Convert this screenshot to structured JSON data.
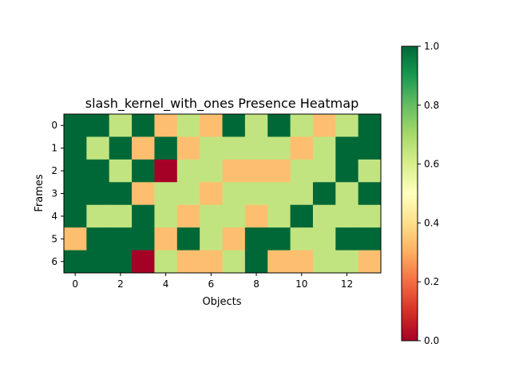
{
  "chart_data": {
    "type": "heatmap",
    "title": "slash_kernel_with_ones Presence Heatmap",
    "xlabel": "Objects",
    "ylabel": "Frames",
    "x_ticks": [
      "0",
      "2",
      "4",
      "6",
      "8",
      "10",
      "12"
    ],
    "y_ticks": [
      "0",
      "1",
      "2",
      "3",
      "4",
      "5",
      "6"
    ],
    "colorbar_ticks": [
      "0.0",
      "0.2",
      "0.4",
      "0.6",
      "0.8",
      "1.0"
    ],
    "colormap": "RdYlGn",
    "vmin": 0.0,
    "vmax": 1.0,
    "colors": {
      "0.0": "#a50026",
      "0.33": "#fdbf6f",
      "0.67": "#c2e480",
      "1.0": "#006837"
    },
    "values": [
      [
        1,
        1,
        0.67,
        1,
        0.33,
        0.67,
        0.33,
        1,
        0.67,
        1,
        0.67,
        0.33,
        0.67,
        1
      ],
      [
        1,
        0.67,
        1,
        0.33,
        1,
        0.33,
        0.67,
        0.67,
        0.67,
        0.67,
        0.33,
        0.67,
        1,
        1
      ],
      [
        1,
        1,
        0.67,
        1,
        0,
        0.67,
        0.67,
        0.33,
        0.33,
        0.33,
        0.67,
        0.67,
        1,
        0.67
      ],
      [
        1,
        1,
        1,
        0.33,
        0.67,
        0.67,
        0.33,
        0.67,
        0.67,
        0.67,
        0.67,
        1,
        0.67,
        1
      ],
      [
        1,
        0.67,
        0.67,
        1,
        0.67,
        0.33,
        0.67,
        0.67,
        0.33,
        0.67,
        1,
        0.67,
        0.67,
        0.67
      ],
      [
        0.33,
        1,
        1,
        1,
        0.33,
        1,
        0.67,
        0.33,
        1,
        1,
        0.67,
        0.67,
        1,
        1
      ],
      [
        1,
        1,
        1,
        0,
        0.67,
        0.33,
        0.33,
        0.67,
        1,
        0.33,
        0.33,
        0.67,
        0.67,
        0.33
      ]
    ]
  }
}
